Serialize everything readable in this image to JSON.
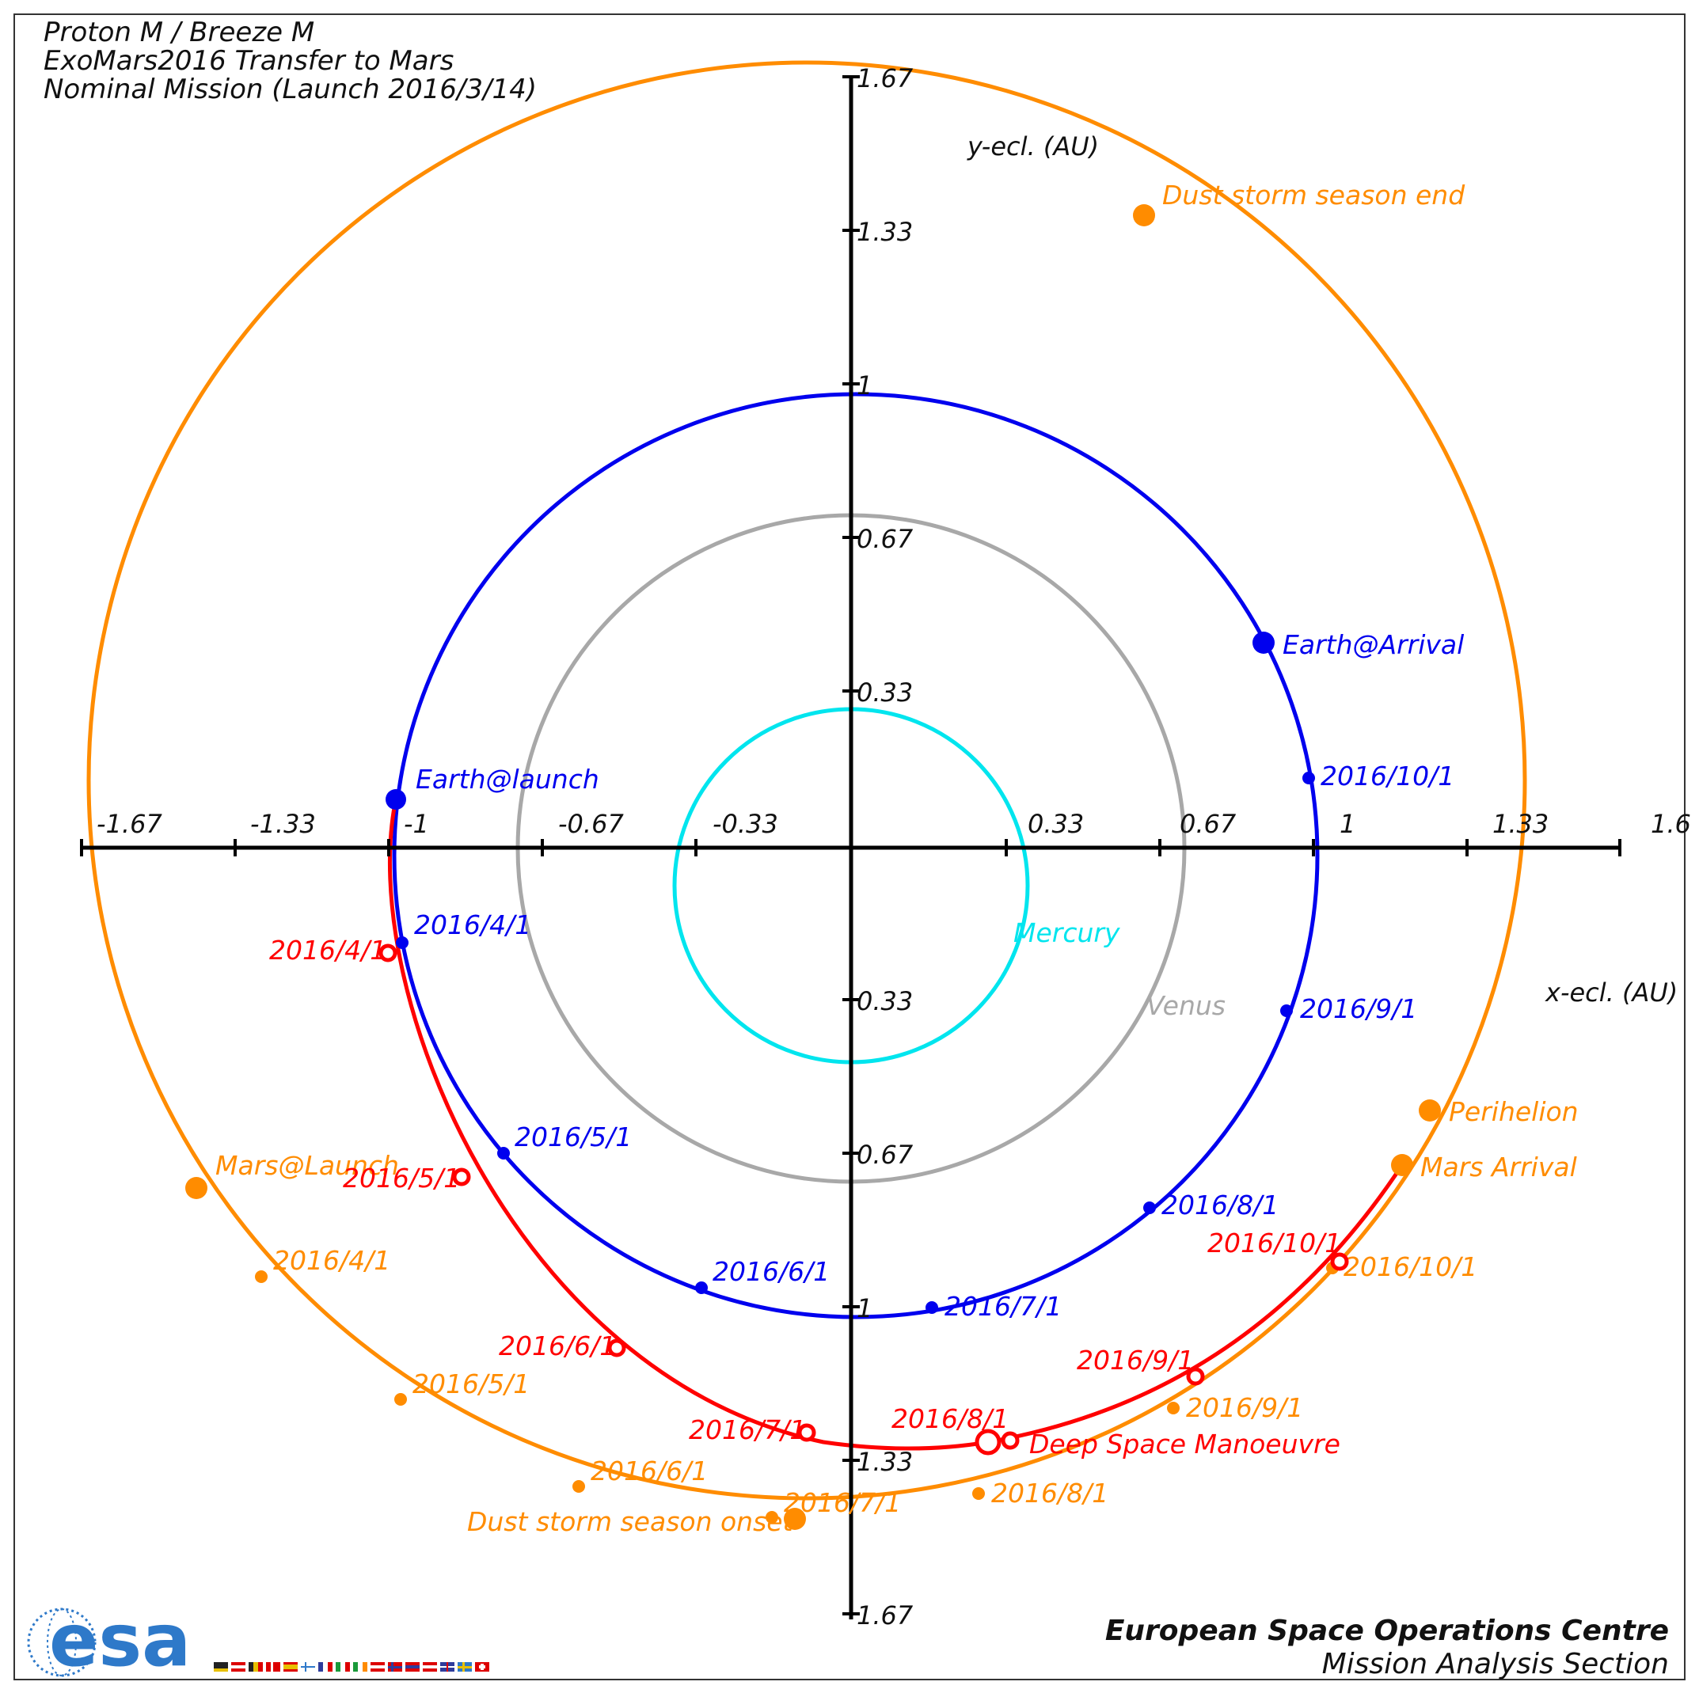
{
  "title": {
    "line1": "Proton M / Breeze M",
    "line2": "ExoMars2016 Transfer to Mars",
    "line3": "Nominal Mission (Launch 2016/3/14)"
  },
  "axes": {
    "x_label": "x-ecl. (AU)",
    "y_label": "y-ecl. (AU)",
    "x_ticks": [
      "-1.67",
      "-1.33",
      "-1",
      "-0.67",
      "-0.33",
      "0.33",
      "0.67",
      "1",
      "1.33",
      "1.6"
    ],
    "y_ticks_pos": [
      "1.67",
      "1.33",
      "1",
      "0.67",
      "0.33"
    ],
    "y_ticks_neg": [
      "0.33",
      "0.67",
      "1",
      "1.33",
      "1.67"
    ]
  },
  "colors": {
    "earth": "#0000ee",
    "mars": "#ff8c00",
    "transfer": "#ff0000",
    "venus": "#a8a8a8",
    "mercury": "#00e5ee",
    "logo": "#2e79c9"
  },
  "planets": {
    "mercury_label": "Mercury",
    "venus_label": "Venus"
  },
  "earth": {
    "launch_label": "Earth@launch",
    "arrival_label": "Earth@Arrival",
    "dates": [
      "2016/4/1",
      "2016/5/1",
      "2016/6/1",
      "2016/7/1",
      "2016/8/1",
      "2016/9/1",
      "2016/10/1"
    ]
  },
  "mars": {
    "launch_label": "Mars@Launch",
    "arrival_label": "Mars Arrival",
    "perihelion_label": "Perihelion",
    "dust_onset_label": "Dust storm season onset",
    "dust_end_label": "Dust storm season end",
    "dates": [
      "2016/4/1",
      "2016/5/1",
      "2016/6/1",
      "2016/7/1",
      "2016/8/1",
      "2016/9/1",
      "2016/10/1"
    ]
  },
  "transfer": {
    "dsm_label": "Deep Space Manoeuvre",
    "dates": [
      "2016/4/1",
      "2016/5/1",
      "2016/6/1",
      "2016/7/1",
      "2016/8/1",
      "2016/9/1",
      "2016/10/1"
    ]
  },
  "credits": {
    "line1": "European Space Operations Centre",
    "line2": "Mission Analysis Section",
    "logo_text": "esa"
  }
}
